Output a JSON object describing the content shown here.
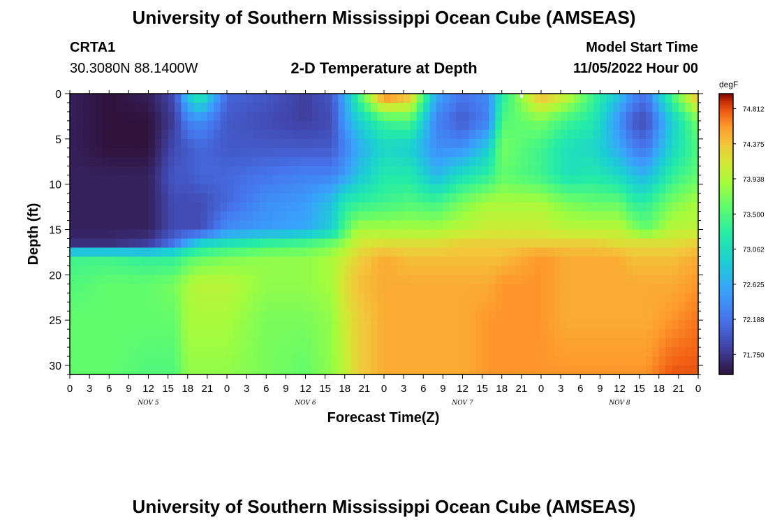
{
  "header": {
    "title": "University of Southern Mississippi Ocean Cube (AMSEAS)",
    "station": "CRTA1",
    "coords": "30.3080N  88.1400W",
    "subtitle": "2-D Temperature at Depth",
    "model_label": "Model Start Time",
    "model_time": "11/05/2022 Hour 00"
  },
  "footer": {
    "title": "University of Southern Mississippi Ocean Cube (AMSEAS)"
  },
  "chart_data": {
    "type": "heatmap",
    "title": "2-D Temperature at Depth",
    "xlabel": "Forecast Time(Z)",
    "ylabel": "Depth (ft)",
    "x_ticks": [
      "0",
      "3",
      "6",
      "9",
      "12",
      "15",
      "18",
      "21",
      "0",
      "3",
      "6",
      "9",
      "12",
      "15",
      "18",
      "21",
      "0",
      "3",
      "6",
      "9",
      "12",
      "15",
      "18",
      "21",
      "0",
      "3",
      "6",
      "9",
      "12",
      "15",
      "18",
      "21",
      "0"
    ],
    "x_range_hours": [
      0,
      96
    ],
    "day_labels": [
      {
        "label": "NOV 5",
        "hour": 12
      },
      {
        "label": "NOV 6",
        "hour": 36
      },
      {
        "label": "NOV 7",
        "hour": 60
      },
      {
        "label": "NOV 8",
        "hour": 84
      }
    ],
    "y_ticks": [
      "0",
      "5",
      "10",
      "15",
      "20",
      "25",
      "30"
    ],
    "ylim": [
      0,
      31
    ],
    "colorbar": {
      "unit": "degF",
      "ticks": [
        "74.812",
        "74.375",
        "73.938",
        "73.500",
        "73.062",
        "72.625",
        "72.188",
        "71.750"
      ],
      "range": [
        71.5,
        75.0
      ]
    },
    "profile_hours": [
      0,
      6,
      12,
      16,
      18,
      20,
      24,
      30,
      36,
      40,
      42,
      44,
      48,
      52,
      56,
      60,
      64,
      66,
      72,
      76,
      80,
      84,
      86,
      88,
      92,
      96
    ],
    "profile_depths": [
      0,
      3,
      6,
      9,
      12,
      15,
      16.5,
      18,
      21,
      25,
      31
    ],
    "temps": [
      [
        71.6,
        71.6,
        71.6,
        71.6,
        71.6,
        71.6,
        71.7,
        73.4,
        73.5,
        73.6,
        73.6
      ],
      [
        71.5,
        71.5,
        71.5,
        71.6,
        71.6,
        71.6,
        71.7,
        73.4,
        73.6,
        73.6,
        73.6
      ],
      [
        71.6,
        71.5,
        71.5,
        71.6,
        71.6,
        71.6,
        71.8,
        73.3,
        73.6,
        73.6,
        73.5
      ],
      [
        71.9,
        71.8,
        71.9,
        72.0,
        71.9,
        71.9,
        72.2,
        73.3,
        73.7,
        73.6,
        73.5
      ],
      [
        72.9,
        72.3,
        72.0,
        72.0,
        71.9,
        71.9,
        72.6,
        73.5,
        73.9,
        73.9,
        73.8
      ],
      [
        73.3,
        72.4,
        72.1,
        72.1,
        71.9,
        71.9,
        72.9,
        73.6,
        74.0,
        73.9,
        73.8
      ],
      [
        72.1,
        72.0,
        72.0,
        72.1,
        72.1,
        72.4,
        73.1,
        73.7,
        74.0,
        73.9,
        73.8
      ],
      [
        72.0,
        71.9,
        72.0,
        72.2,
        72.4,
        72.5,
        73.3,
        73.8,
        73.8,
        73.7,
        73.7
      ],
      [
        71.8,
        71.8,
        72.0,
        72.3,
        72.5,
        72.6,
        73.4,
        73.8,
        73.8,
        73.7,
        73.6
      ],
      [
        72.0,
        71.9,
        72.0,
        72.3,
        72.8,
        72.9,
        73.6,
        73.9,
        73.9,
        73.8,
        73.8
      ],
      [
        72.6,
        72.5,
        72.3,
        72.5,
        73.2,
        73.5,
        73.8,
        74.1,
        74.2,
        74.1,
        74.0
      ],
      [
        73.4,
        72.9,
        72.6,
        72.8,
        73.3,
        73.9,
        74.1,
        74.3,
        74.4,
        74.3,
        74.3
      ],
      [
        74.8,
        73.4,
        73.0,
        73.2,
        73.4,
        73.9,
        74.2,
        74.5,
        74.5,
        74.5,
        74.5
      ],
      [
        74.5,
        73.5,
        72.9,
        73.2,
        73.5,
        73.9,
        74.2,
        74.4,
        74.5,
        74.5,
        74.5
      ],
      [
        72.6,
        72.3,
        72.4,
        72.7,
        73.4,
        73.9,
        74.2,
        74.4,
        74.5,
        74.5,
        74.5
      ],
      [
        72.2,
        72.0,
        72.4,
        73.1,
        73.7,
        74.0,
        74.3,
        74.4,
        74.5,
        74.5,
        74.5
      ],
      [
        72.4,
        72.3,
        72.9,
        73.3,
        73.9,
        74.1,
        74.3,
        74.4,
        74.5,
        74.6,
        74.6
      ],
      [
        73.2,
        73.5,
        73.7,
        73.6,
        73.9,
        74.1,
        74.3,
        74.4,
        74.6,
        74.6,
        74.6
      ],
      [
        74.5,
        73.7,
        73.4,
        73.4,
        73.9,
        74.1,
        74.3,
        74.6,
        74.6,
        74.6,
        74.6
      ],
      [
        74.1,
        73.4,
        73.1,
        73.1,
        73.7,
        74.0,
        74.3,
        74.5,
        74.5,
        74.5,
        74.6
      ],
      [
        73.4,
        73.2,
        73.0,
        73.2,
        73.6,
        74.0,
        74.3,
        74.5,
        74.5,
        74.5,
        74.6
      ],
      [
        72.8,
        72.4,
        72.6,
        73.0,
        73.6,
        74.0,
        74.2,
        74.5,
        74.5,
        74.5,
        74.6
      ],
      [
        72.4,
        72.0,
        72.3,
        72.8,
        73.3,
        73.8,
        74.2,
        74.4,
        74.5,
        74.5,
        74.6
      ],
      [
        72.2,
        71.9,
        72.2,
        72.7,
        73.3,
        73.6,
        74.2,
        74.4,
        74.5,
        74.5,
        74.6
      ],
      [
        73.5,
        72.9,
        73.0,
        73.3,
        73.7,
        74.0,
        74.2,
        74.4,
        74.5,
        74.6,
        74.8
      ],
      [
        74.5,
        73.7,
        73.5,
        73.6,
        73.9,
        74.0,
        74.3,
        74.5,
        74.6,
        74.7,
        74.8
      ]
    ]
  }
}
